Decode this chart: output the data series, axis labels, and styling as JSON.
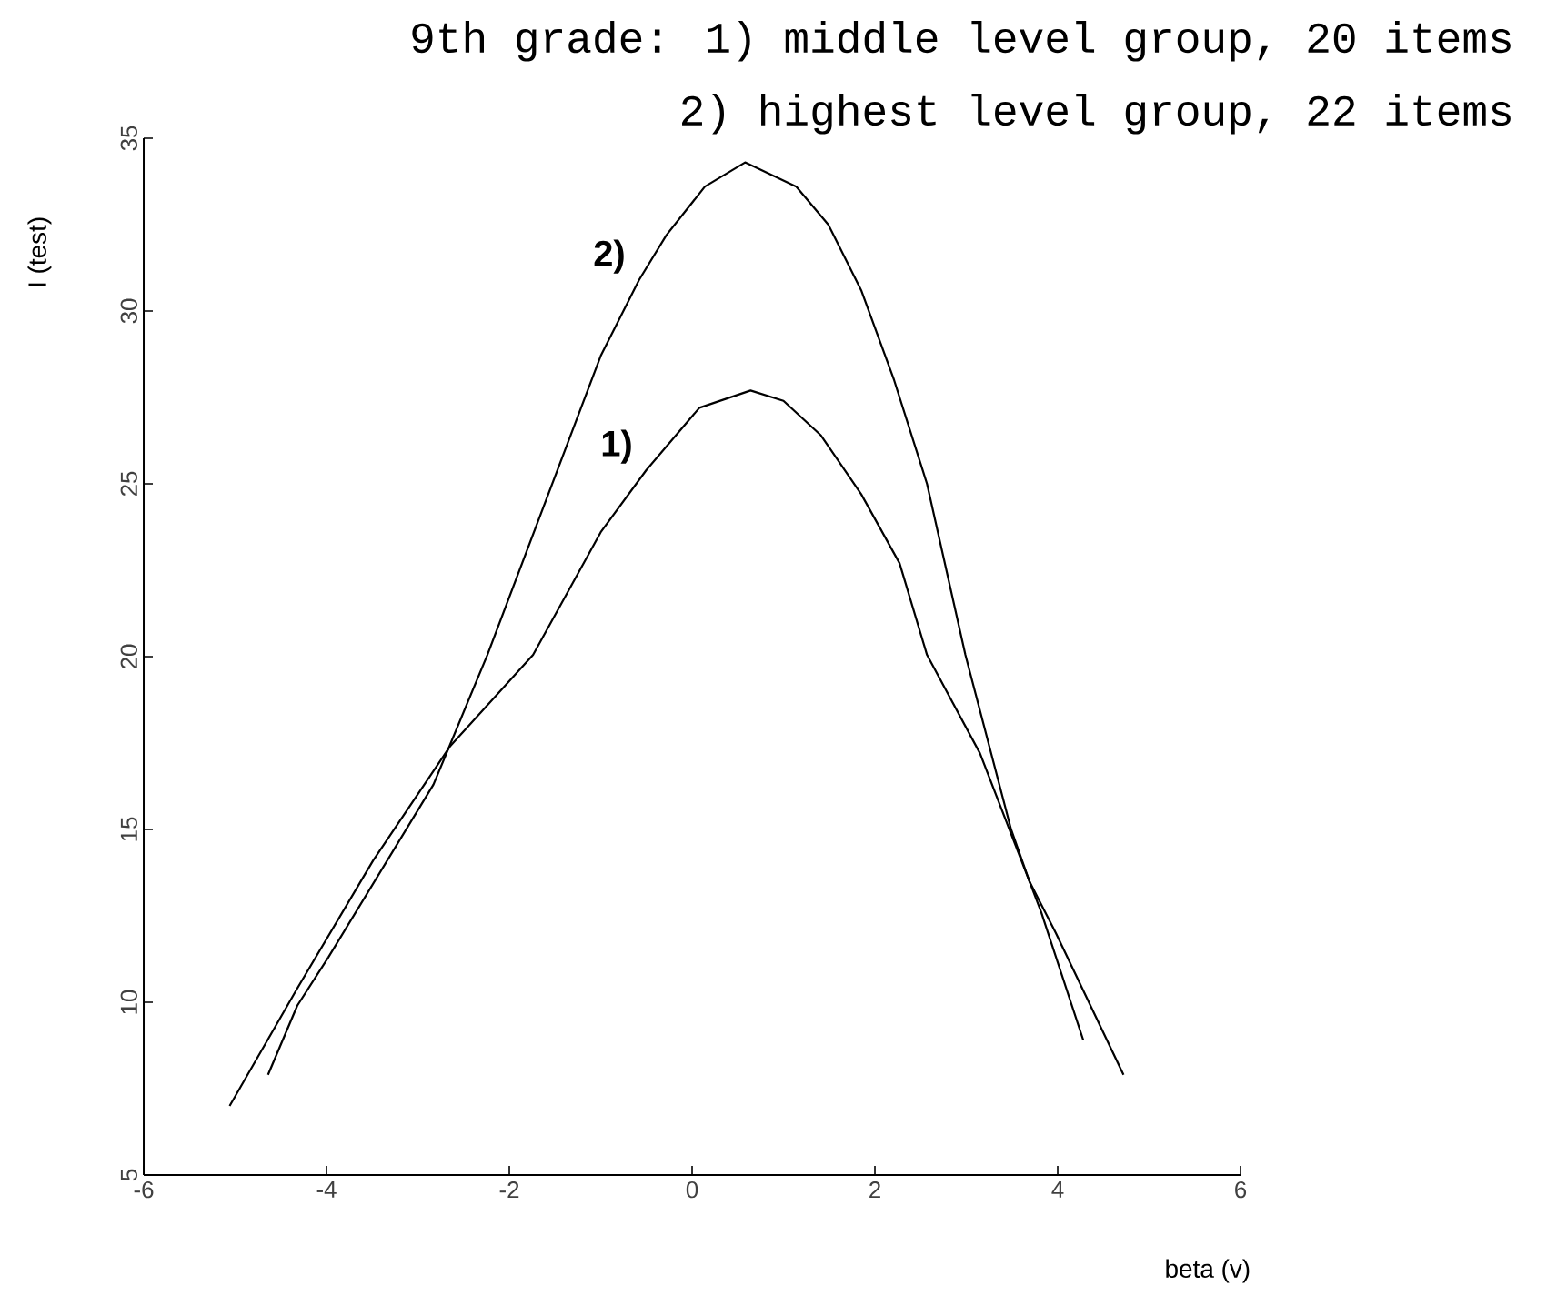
{
  "chart_data": {
    "type": "line",
    "title": "9th grade:  1) middle level group, 20 items",
    "subtitle": "2) highest level group, 22 items",
    "xlabel": "beta (v)",
    "ylabel": "I (test)",
    "xlim": [
      -6,
      6
    ],
    "xticks": [
      -6,
      -4,
      -2,
      0,
      2,
      4,
      6
    ],
    "ylim": [
      5,
      35
    ],
    "yticks": [
      5,
      10,
      15,
      20,
      25,
      30,
      35
    ],
    "grid": false,
    "legend": false,
    "marker": "none",
    "line_style": "solid",
    "series": [
      {
        "name": "1)",
        "color": "#000000",
        "x": [
          -5.06,
          -4.32,
          -3.49,
          -2.65,
          -1.74,
          -1.0,
          -0.5,
          0.08,
          0.64,
          1.0,
          1.41,
          1.85,
          2.27,
          2.57,
          3.15,
          3.69,
          3.98,
          4.72
        ],
        "values": [
          7.0,
          10.4,
          14.1,
          17.4,
          20.05,
          23.6,
          25.4,
          27.2,
          27.7,
          27.4,
          26.4,
          24.7,
          22.7,
          20.05,
          17.2,
          13.5,
          12.0,
          7.9
        ]
      },
      {
        "name": "2)",
        "color": "#000000",
        "x": [
          -4.64,
          -4.32,
          -3.98,
          -2.83,
          -2.24,
          -1.0,
          -0.58,
          -0.28,
          0.14,
          0.58,
          1.14,
          1.49,
          1.85,
          2.21,
          2.57,
          2.99,
          3.49,
          3.69,
          3.82,
          4.28
        ],
        "values": [
          7.9,
          9.9,
          11.3,
          16.3,
          20.05,
          28.7,
          30.9,
          32.2,
          33.6,
          34.3,
          33.6,
          32.5,
          30.6,
          28.0,
          25.0,
          20.05,
          15.0,
          13.5,
          12.6,
          8.9
        ]
      }
    ]
  }
}
